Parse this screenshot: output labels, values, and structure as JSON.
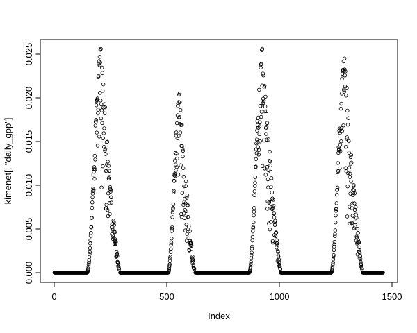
{
  "chart_data": {
    "type": "scatter",
    "title": "",
    "xlabel": "Index",
    "ylabel": "kimenet[, \"daily_gpp\"]",
    "xlim": [
      0,
      1500
    ],
    "ylim": [
      0,
      0.025
    ],
    "xticks": [
      0,
      500,
      1000,
      1500
    ],
    "xtick_labels": [
      "0",
      "500",
      "1000",
      "1500"
    ],
    "yticks": [
      0,
      0.005,
      0.01,
      0.015,
      0.02,
      0.025
    ],
    "ytick_labels": [
      "0.000",
      "0.005",
      "0.010",
      "0.015",
      "0.020",
      "0.025"
    ],
    "grid": false,
    "legend": null,
    "marker": {
      "shape": "open-circle",
      "color": "#000000"
    },
    "background": "#ffffff",
    "n_points": 1460,
    "pattern": "Daily GPP time series: long near-zero dormant stretches interrupted by four seasonal growth peaks, each with a tight sigmoid rise and a widely scattered noisy decline",
    "zero_segments": [
      [
        1,
        145
      ],
      [
        293,
        505
      ],
      [
        627,
        865
      ],
      [
        1006,
        1229
      ],
      [
        1370,
        1460
      ]
    ],
    "seasons": [
      {
        "start": 146,
        "peak_index": 207,
        "end": 288,
        "peak_value": 0.0256
      },
      {
        "start": 506,
        "peak_index": 557,
        "end": 622,
        "peak_value": 0.0205
      },
      {
        "start": 866,
        "peak_index": 924,
        "end": 1004,
        "peak_value": 0.0256
      },
      {
        "start": 1230,
        "peak_index": 1289,
        "end": 1367,
        "peak_value": 0.0245
      }
    ]
  }
}
